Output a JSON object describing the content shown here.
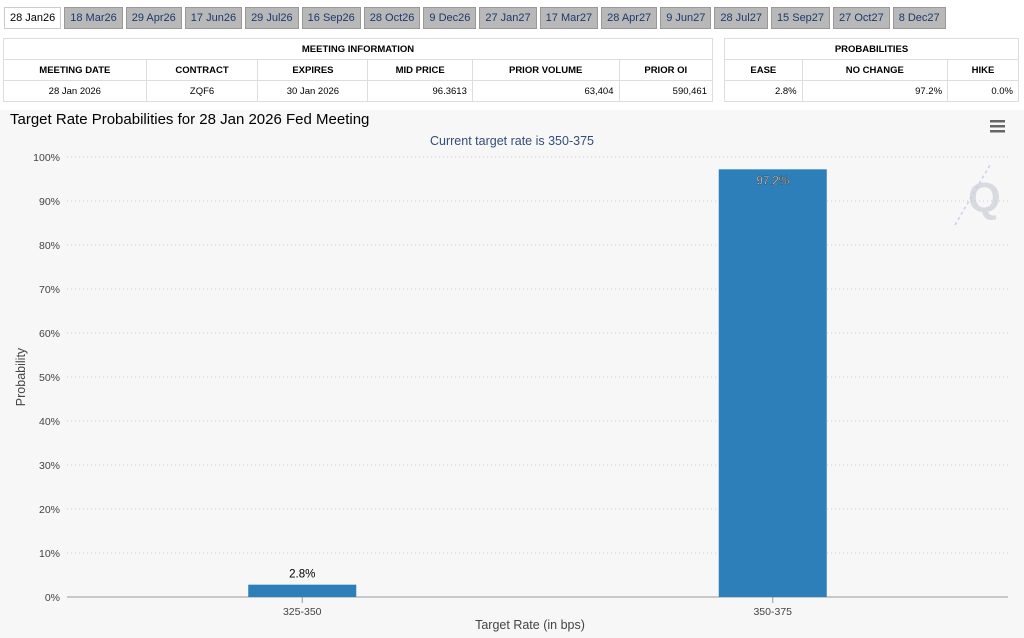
{
  "tabs": [
    "28 Jan26",
    "18 Mar26",
    "29 Apr26",
    "17 Jun26",
    "29 Jul26",
    "16 Sep26",
    "28 Oct26",
    "9 Dec26",
    "27 Jan27",
    "17 Mar27",
    "28 Apr27",
    "9 Jun27",
    "28 Jul27",
    "15 Sep27",
    "27 Oct27",
    "8 Dec27"
  ],
  "meeting_info": {
    "title": "MEETING INFORMATION",
    "headers": [
      "MEETING DATE",
      "CONTRACT",
      "EXPIRES",
      "MID PRICE",
      "PRIOR VOLUME",
      "PRIOR OI"
    ],
    "row": [
      "28 Jan 2026",
      "ZQF6",
      "30 Jan 2026",
      "96.3613",
      "63,404",
      "590,461"
    ]
  },
  "probabilities": {
    "title": "PROBABILITIES",
    "headers": [
      "EASE",
      "NO CHANGE",
      "HIKE"
    ],
    "row": [
      "2.8%",
      "97.2%",
      "0.0%"
    ]
  },
  "chart_data": {
    "type": "bar",
    "title": "Target Rate Probabilities for 28 Jan 2026 Fed Meeting",
    "subtitle": "Current target rate is 350-375",
    "x_label": "Target Rate (in bps)",
    "y_label": "Probability",
    "categories": [
      "325-350",
      "350-375"
    ],
    "values": [
      2.8,
      97.2
    ],
    "value_labels": [
      "2.8%",
      "97.2%"
    ],
    "color": "#2d7fb9",
    "ylim": [
      0,
      100
    ],
    "yticks": [
      {
        "value": 0,
        "label": "0%"
      },
      {
        "value": 10,
        "label": "10%"
      },
      {
        "value": 20,
        "label": "20%"
      },
      {
        "value": 30,
        "label": "30%"
      },
      {
        "value": 40,
        "label": "40%"
      },
      {
        "value": 50,
        "label": "50%"
      },
      {
        "value": 60,
        "label": "60%"
      },
      {
        "value": 70,
        "label": "70%"
      },
      {
        "value": 80,
        "label": "80%"
      },
      {
        "value": 90,
        "label": "90%"
      },
      {
        "value": 100,
        "label": "100%"
      }
    ],
    "grid": true
  }
}
